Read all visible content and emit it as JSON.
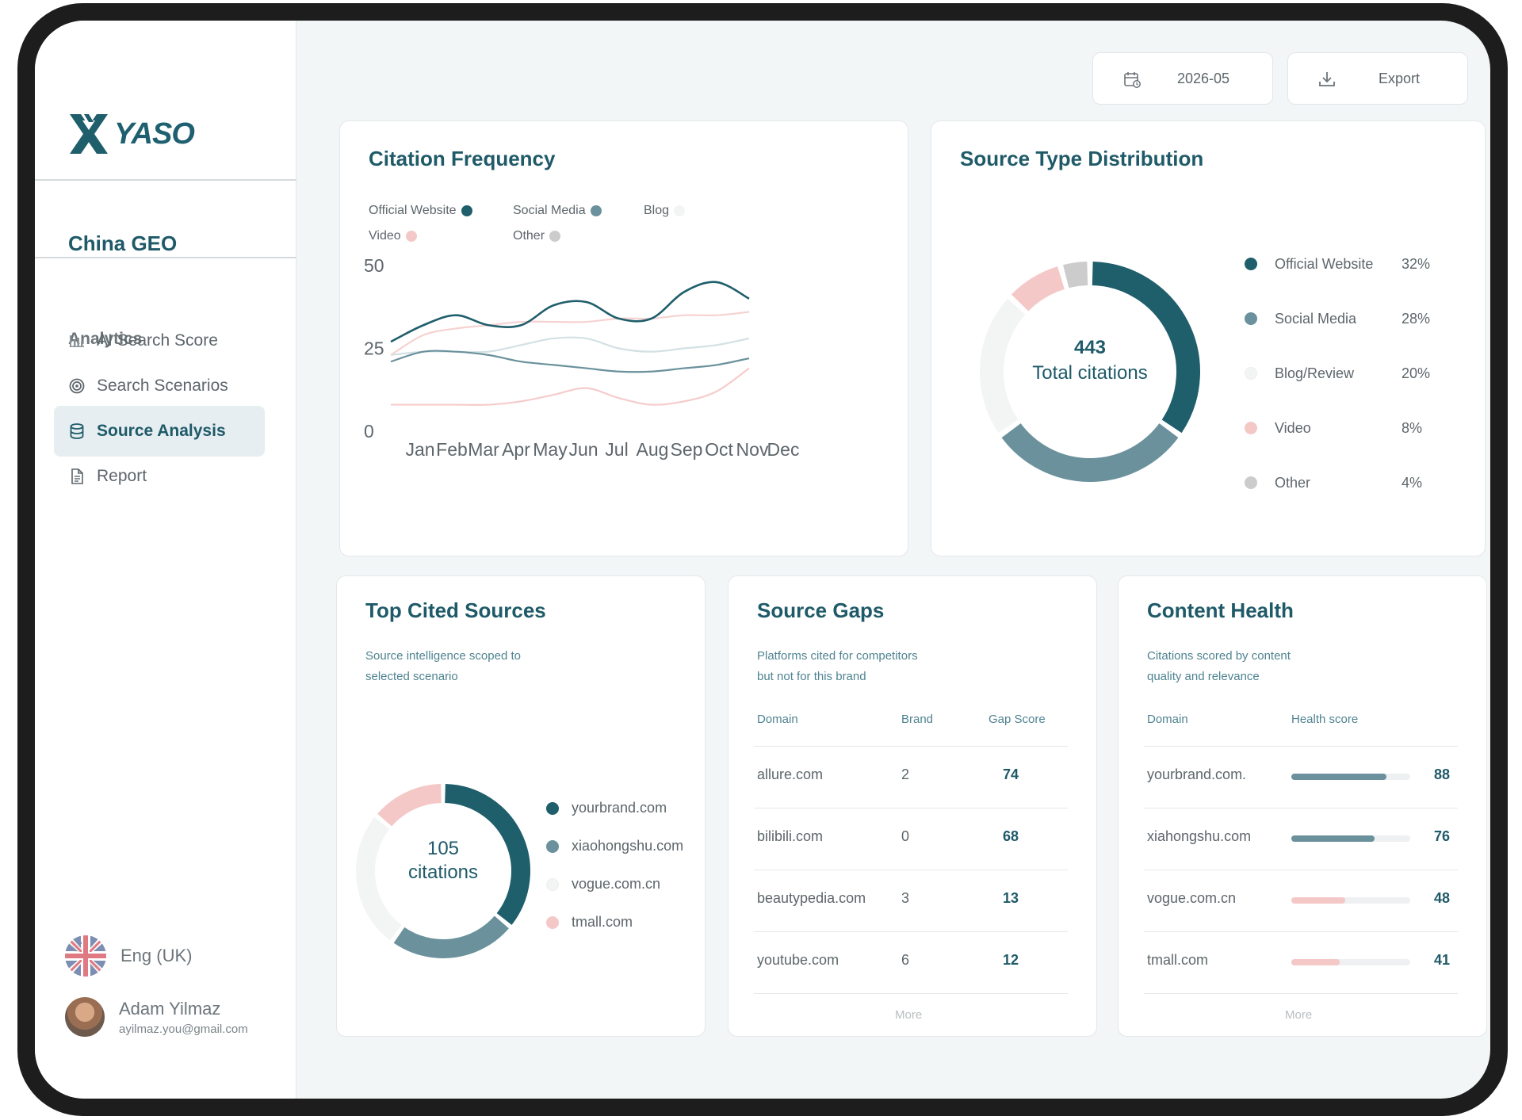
{
  "brand": {
    "logo_text": "YASO"
  },
  "sidebar": {
    "workspace": "China GEO",
    "section": "Analytics",
    "items": [
      {
        "label": "AI Search Score",
        "icon": "bar-chart-icon",
        "active": false
      },
      {
        "label": "Search Scenarios",
        "icon": "target-icon",
        "active": false
      },
      {
        "label": "Source Analysis",
        "icon": "database-icon",
        "active": true
      },
      {
        "label": "Report",
        "icon": "document-icon",
        "active": false
      }
    ],
    "language": "Eng (UK)",
    "user": {
      "name": "Adam Yilmaz",
      "email": "ayilmaz.you@gmail.com"
    }
  },
  "toolbar": {
    "date": "2026-05",
    "export_label": "Export"
  },
  "colors": {
    "official": "#1f5e6b",
    "social": "#6a919c",
    "blog": "#f3f4f4",
    "video": "#f5c8c8",
    "other": "#cdcccc",
    "accent": "#1f5a68"
  },
  "citation_frequency": {
    "title": "Citation Frequency",
    "legend": [
      "Official Website",
      "Social Media",
      "Blog",
      "Video",
      "Other"
    ]
  },
  "chart_data": [
    {
      "type": "line",
      "title": "Citation Frequency",
      "categories": [
        "Jan",
        "Feb",
        "Mar",
        "Apr",
        "May",
        "Jun",
        "Jul",
        "Aug",
        "Sep",
        "Oct",
        "Nov",
        "Dec"
      ],
      "ylim": [
        0,
        50
      ],
      "yticks": [
        "0",
        "25",
        "50"
      ],
      "series": [
        {
          "name": "Official Website",
          "color": "#1f5e6b",
          "values": [
            27,
            32,
            35,
            32,
            32,
            38,
            39,
            34,
            34,
            42,
            45,
            40
          ]
        },
        {
          "name": "Social Media",
          "color": "#6a919c",
          "values": [
            21,
            24,
            24,
            23,
            21,
            20,
            19,
            18,
            18,
            19,
            20,
            22
          ]
        },
        {
          "name": "Blog",
          "color": "#d3e0e4",
          "values": [
            23,
            24,
            24,
            24,
            26,
            28,
            28,
            25,
            24,
            25,
            26,
            28
          ]
        },
        {
          "name": "Video",
          "color": "#f6d2d2",
          "values": [
            23,
            29,
            31,
            32,
            33,
            33,
            33,
            34,
            34,
            35,
            35,
            36
          ]
        },
        {
          "name": "Other",
          "color": "#f6cccc",
          "values": [
            8,
            8,
            8,
            8,
            9,
            11,
            13,
            10,
            8,
            9,
            12,
            19
          ]
        }
      ],
      "grid": false,
      "legend_position": "top-left"
    },
    {
      "type": "pie",
      "title": "Source Type Distribution",
      "center_value": "443",
      "center_label": "Total citations",
      "slices": [
        {
          "label": "Official Website",
          "pct": "32%",
          "value": 32,
          "color": "#1f5e6b"
        },
        {
          "label": "Social Media",
          "pct": "28%",
          "value": 28,
          "color": "#6a919c"
        },
        {
          "label": "Blog/Review",
          "pct": "20%",
          "value": 20,
          "color": "#f3f4f4"
        },
        {
          "label": "Video",
          "pct": "8%",
          "value": 8,
          "color": "#f5c8c8"
        },
        {
          "label": "Other",
          "pct": "4%",
          "value": 4,
          "color": "#cdcccc"
        }
      ],
      "legend_position": "right"
    },
    {
      "type": "pie",
      "title": "Top Cited Sources",
      "center_value": "105",
      "center_label": "citations",
      "slices": [
        {
          "label": "yourbrand.com",
          "value": 36,
          "color": "#1f5e6b"
        },
        {
          "label": "xiaohongshu.com",
          "value": 24,
          "color": "#6a919c"
        },
        {
          "label": "vogue.com.cn",
          "value": 26,
          "color": "#f3f4f4"
        },
        {
          "label": "tmall.com",
          "value": 14,
          "color": "#f5c8c8"
        }
      ],
      "legend_position": "right"
    }
  ],
  "source_type": {
    "title": "Source Type Distribution"
  },
  "top_sources": {
    "title": "Top Cited Sources",
    "subtitle_1": "Source intelligence scoped to",
    "subtitle_2": "selected scenario"
  },
  "source_gaps": {
    "title": "Source Gaps",
    "subtitle_1": "Platforms cited for competitors",
    "subtitle_2": "but not for this brand",
    "headers": [
      "Domain",
      "Brand",
      "Gap Score"
    ],
    "rows": [
      {
        "domain": "allure.com",
        "brand": "2",
        "score": "74"
      },
      {
        "domain": "bilibili.com",
        "brand": "0",
        "score": "68"
      },
      {
        "domain": "beautypedia.com",
        "brand": "3",
        "score": "13"
      },
      {
        "domain": "youtube.com",
        "brand": "6",
        "score": "12"
      }
    ],
    "more": "More"
  },
  "content_health": {
    "title": "Content Health",
    "subtitle_1": "Citations scored by content",
    "subtitle_2": "quality and relevance",
    "headers": [
      "Domain",
      "Health score"
    ],
    "rows": [
      {
        "domain": "yourbrand.com.",
        "score": "88",
        "level": 0.8,
        "color": "#6a919c"
      },
      {
        "domain": "xiahongshu.com",
        "score": "76",
        "level": 0.7,
        "color": "#6a919c"
      },
      {
        "domain": "vogue.com.cn",
        "score": "48",
        "level": 0.45,
        "color": "#f5c8c8"
      },
      {
        "domain": "tmall.com",
        "score": "41",
        "level": 0.41,
        "color": "#f5c8c8"
      }
    ],
    "more": "More"
  }
}
